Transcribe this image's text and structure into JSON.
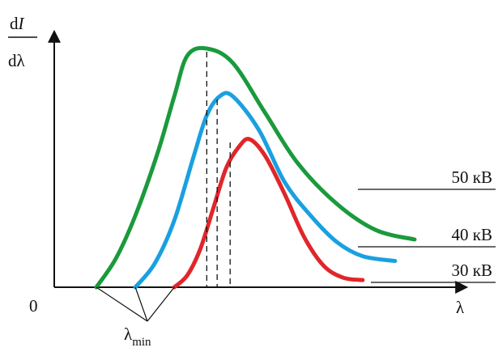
{
  "chart_data": {
    "type": "line",
    "y_axis": {
      "label_numerator_d": "d",
      "label_numerator_var": "I",
      "label_denominator": "dλ"
    },
    "x_axis": {
      "label": "λ"
    },
    "origin_label": "0",
    "lambda_min": {
      "symbol": "λ",
      "subscript": "min"
    },
    "series": [
      {
        "name": "50 кВ",
        "color": "#1a9a3c",
        "x": [
          0.15,
          0.3,
          0.45,
          0.62,
          0.75,
          0.85,
          1.0,
          1.2,
          1.45,
          1.7,
          2.0,
          2.3,
          2.6
        ],
        "y": [
          0.0,
          0.12,
          0.3,
          0.56,
          0.8,
          0.97,
          1.0,
          0.94,
          0.73,
          0.52,
          0.35,
          0.24,
          0.2
        ]
      },
      {
        "name": "40 кВ",
        "color": "#1aa0e0",
        "x": [
          0.45,
          0.6,
          0.75,
          0.9,
          1.0,
          1.1,
          1.2,
          1.4,
          1.6,
          1.8,
          2.0,
          2.2,
          2.45
        ],
        "y": [
          0.0,
          0.1,
          0.28,
          0.55,
          0.72,
          0.8,
          0.8,
          0.66,
          0.44,
          0.3,
          0.19,
          0.13,
          0.11
        ]
      },
      {
        "name": "30 кВ",
        "color": "#e0262a",
        "x": [
          0.75,
          0.85,
          0.95,
          1.05,
          1.15,
          1.25,
          1.33,
          1.45,
          1.6,
          1.75,
          1.9,
          2.05,
          2.2
        ],
        "y": [
          0.0,
          0.05,
          0.16,
          0.33,
          0.5,
          0.59,
          0.62,
          0.55,
          0.39,
          0.21,
          0.09,
          0.04,
          0.03
        ]
      }
    ],
    "peak_x": [
      1.0,
      1.08,
      1.18
    ]
  }
}
